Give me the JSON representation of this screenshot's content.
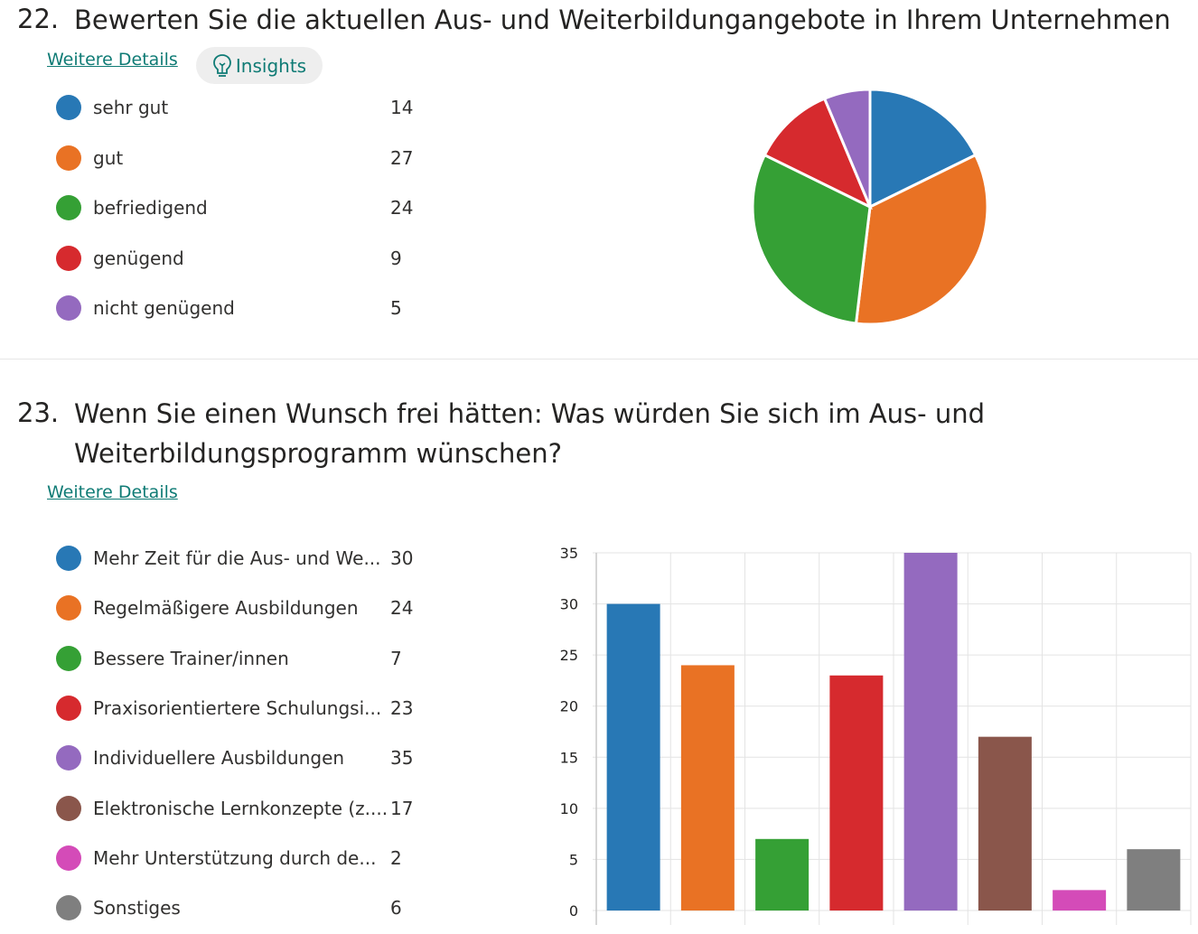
{
  "q22": {
    "number": "22.",
    "title": "Bewerten Sie die aktuellen Aus- und Weiterbildungangebote in Ihrem Unternehmen",
    "details_link": "Weitere Details",
    "insights_label": "Insights",
    "insights_icon": "lightbulb-icon"
  },
  "q23": {
    "number": "23.",
    "title_line1": "Wenn Sie einen Wunsch frei hätten: Was würden Sie sich im Aus- und",
    "title_line2": "Weiterbildungsprogramm wünschen?",
    "details_link": "Weitere Details"
  },
  "chart_data": [
    {
      "type": "pie",
      "categories": [
        "sehr gut",
        "gut",
        "befriedigend",
        "genügend",
        "nicht genügend"
      ],
      "values": [
        14,
        27,
        24,
        9,
        5
      ],
      "colors": [
        "#2878b5",
        "#e97224",
        "#35a035",
        "#d62a2e",
        "#946abf"
      ],
      "legend": "left"
    },
    {
      "type": "bar",
      "categories": [
        "Mehr Zeit für die Aus- und We...",
        "Regelmäßigere Ausbildungen",
        "Bessere Trainer/innen",
        "Praxisorientiertere Schulungsi...",
        "Individuellere Ausbildungen",
        "Elektronische Lernkonzepte (z....",
        "Mehr Unterstützung durch de...",
        "Sonstiges"
      ],
      "values": [
        30,
        24,
        7,
        23,
        35,
        17,
        2,
        6
      ],
      "colors": [
        "#2878b5",
        "#e97224",
        "#35a035",
        "#d62a2e",
        "#946abf",
        "#8a564b",
        "#d44bb8",
        "#7f7f7f"
      ],
      "ylim": [
        0,
        35
      ],
      "yticks": [
        0,
        5,
        10,
        15,
        20,
        25,
        30,
        35
      ],
      "grid": true,
      "legend": "left"
    }
  ]
}
